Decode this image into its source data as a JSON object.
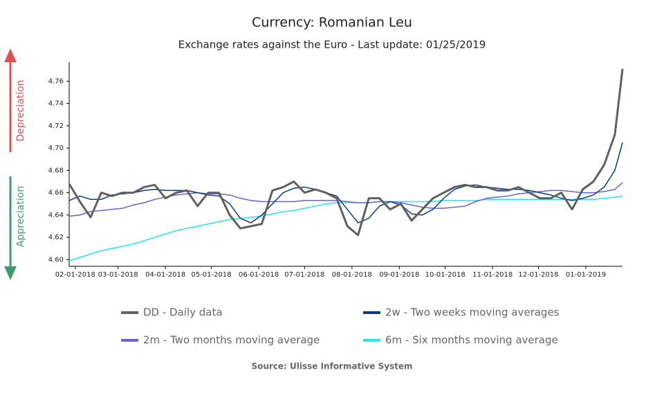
{
  "chart_data": {
    "type": "line",
    "title": "Currency: Romanian Leu",
    "subtitle": "Exchange rates against the Euro - Last update: 01/25/2019",
    "source": "Source: Ulisse Informative System",
    "annotations": {
      "top": "Depreciation",
      "bottom": "Appreciation"
    },
    "x": [
      "01-28-2018",
      "02-04-2018",
      "02-11-2018",
      "02-18-2018",
      "02-25-2018",
      "03-04-2018",
      "03-11-2018",
      "03-18-2018",
      "03-25-2018",
      "04-01-2018",
      "04-08-2018",
      "04-15-2018",
      "04-22-2018",
      "04-29-2018",
      "05-06-2018",
      "05-13-2018",
      "05-20-2018",
      "05-27-2018",
      "06-03-2018",
      "06-10-2018",
      "06-17-2018",
      "06-24-2018",
      "07-01-2018",
      "07-08-2018",
      "07-15-2018",
      "07-22-2018",
      "07-29-2018",
      "08-05-2018",
      "08-12-2018",
      "08-19-2018",
      "08-26-2018",
      "09-02-2018",
      "09-09-2018",
      "09-16-2018",
      "09-23-2018",
      "09-30-2018",
      "10-07-2018",
      "10-14-2018",
      "10-21-2018",
      "10-28-2018",
      "11-04-2018",
      "11-11-2018",
      "11-18-2018",
      "11-25-2018",
      "12-02-2018",
      "12-09-2018",
      "12-16-2018",
      "12-23-2018",
      "12-30-2018",
      "01-06-2019",
      "01-13-2019",
      "01-20-2019",
      "01-25-2019"
    ],
    "series": [
      {
        "name": "DD - Daily data",
        "color": "#606060",
        "width": 3,
        "values": [
          4.668,
          4.652,
          4.638,
          4.66,
          4.657,
          4.66,
          4.66,
          4.665,
          4.667,
          4.655,
          4.66,
          4.662,
          4.648,
          4.66,
          4.66,
          4.64,
          4.628,
          4.63,
          4.632,
          4.662,
          4.665,
          4.67,
          4.66,
          4.663,
          4.66,
          4.655,
          4.63,
          4.622,
          4.655,
          4.655,
          4.645,
          4.65,
          4.635,
          4.645,
          4.655,
          4.66,
          4.665,
          4.667,
          4.665,
          4.665,
          4.662,
          4.662,
          4.665,
          4.66,
          4.655,
          4.655,
          4.66,
          4.645,
          4.663,
          4.67,
          4.685,
          4.712,
          4.771
        ]
      },
      {
        "name": "2w - Two weeks moving averages",
        "color": "#0d3b7a",
        "width": 1.5,
        "values": [
          4.653,
          4.657,
          4.654,
          4.654,
          4.658,
          4.659,
          4.66,
          4.662,
          4.663,
          4.662,
          4.662,
          4.662,
          4.66,
          4.658,
          4.657,
          4.65,
          4.637,
          4.633,
          4.64,
          4.65,
          4.66,
          4.664,
          4.665,
          4.663,
          4.66,
          4.657,
          4.645,
          4.633,
          4.637,
          4.648,
          4.652,
          4.649,
          4.641,
          4.64,
          4.645,
          4.655,
          4.663,
          4.666,
          4.667,
          4.665,
          4.664,
          4.663,
          4.663,
          4.662,
          4.66,
          4.658,
          4.655,
          4.653,
          4.655,
          4.658,
          4.665,
          4.68,
          4.705
        ]
      },
      {
        "name": "2m - Two months moving average",
        "color": "#6b5fd8",
        "width": 1.5,
        "values": [
          4.639,
          4.64,
          4.643,
          4.644,
          4.645,
          4.646,
          4.649,
          4.651,
          4.654,
          4.656,
          4.658,
          4.659,
          4.66,
          4.659,
          4.659,
          4.658,
          4.655,
          4.653,
          4.652,
          4.652,
          4.652,
          4.652,
          4.653,
          4.653,
          4.653,
          4.653,
          4.652,
          4.651,
          4.651,
          4.652,
          4.652,
          4.651,
          4.649,
          4.647,
          4.646,
          4.646,
          4.647,
          4.648,
          4.652,
          4.655,
          4.656,
          4.657,
          4.659,
          4.66,
          4.661,
          4.662,
          4.662,
          4.661,
          4.66,
          4.66,
          4.661,
          4.663,
          4.669
        ]
      },
      {
        "name": "6m - Six months moving average",
        "color": "#1de9ec",
        "width": 1.5,
        "values": [
          4.599,
          4.602,
          4.605,
          4.608,
          4.61,
          4.612,
          4.614,
          4.617,
          4.62,
          4.623,
          4.626,
          4.628,
          4.63,
          4.632,
          4.634,
          4.636,
          4.637,
          4.638,
          4.639,
          4.641,
          4.643,
          4.644,
          4.646,
          4.648,
          4.65,
          4.651,
          4.651,
          4.651,
          4.651,
          4.652,
          4.652,
          4.652,
          4.652,
          4.652,
          4.652,
          4.653,
          4.653,
          4.653,
          4.653,
          4.654,
          4.654,
          4.654,
          4.654,
          4.654,
          4.654,
          4.654,
          4.654,
          4.654,
          4.654,
          4.654,
          4.655,
          4.656,
          4.657
        ]
      }
    ],
    "xlim": [
      "01-28-2018",
      "01-25-2019"
    ],
    "xticks": [
      "02-01-2018",
      "03-01-2018",
      "04-01-2018",
      "05-01-2018",
      "06-01-2018",
      "07-01-2018",
      "08-01-2018",
      "09-01-2018",
      "10-01-2018",
      "11-01-2018",
      "12-01-2018",
      "01-01-2019"
    ],
    "ylim": [
      4.594,
      4.777
    ],
    "yticks": [
      {
        "value": 4.6,
        "label": "4.60"
      },
      4.62,
      4.64,
      4.66,
      4.68,
      {
        "value": 4.7,
        "label": "4.70"
      },
      4.72,
      4.74,
      4.76
    ],
    "grid": false
  }
}
